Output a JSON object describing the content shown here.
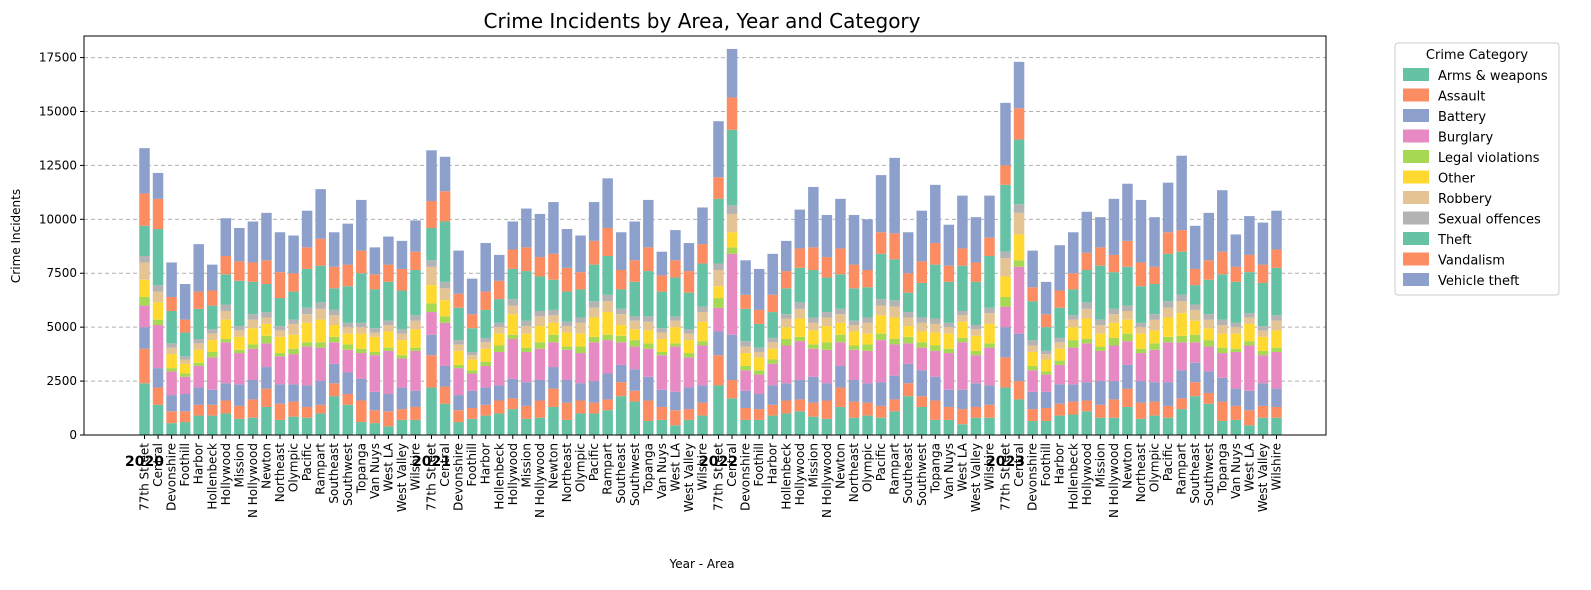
{
  "chart_data": {
    "type": "bar",
    "stacked": true,
    "title": "Crime Incidents by Area, Year and Category",
    "xlabel": "Year - Area",
    "ylabel": "Crime Incidents",
    "ylim": [
      0,
      18500
    ],
    "yticks": [
      0,
      2500,
      5000,
      7500,
      10000,
      12500,
      15000,
      17500
    ],
    "ytick_labels": [
      "0",
      "2500",
      "5000",
      "7500",
      "10000",
      "12500",
      "15000",
      "17500"
    ],
    "grid": "y dashed",
    "legend_title": "Crime Category",
    "legend_position": "outside right",
    "years": [
      "2020",
      "2021",
      "2022",
      "2023"
    ],
    "areas": [
      "77th Street",
      "Central",
      "Devonshire",
      "Foothill",
      "Harbor",
      "Hollenbeck",
      "Hollywood",
      "Mission",
      "N Hollywood",
      "Newton",
      "Northeast",
      "Olympic",
      "Pacific",
      "Rampart",
      "Southeast",
      "Southwest",
      "Topanga",
      "Van Nuys",
      "West LA",
      "West Valley",
      "Wilshire"
    ],
    "categories": [
      "Arms & weapons",
      "Assault",
      "Battery",
      "Burglary",
      "Legal violations",
      "Other",
      "Robbery",
      "Sexual offences",
      "Theft",
      "Vandalism",
      "Vehicle theft"
    ],
    "colors": [
      "#66c2a5",
      "#fc8d62",
      "#8da0cb",
      "#e78ac3",
      "#a6d854",
      "#ffd92f",
      "#e5c494",
      "#b3b3b3",
      "#66c2a5",
      "#fc8d62",
      "#8da0cb"
    ],
    "series": [
      {
        "name": "Arms & weapons",
        "values": [
          [
            2400,
            1400,
            550,
            600,
            900,
            900,
            1000,
            750,
            800,
            1300,
            700,
            850,
            800,
            1000,
            1800,
            1400,
            600,
            550,
            400,
            700,
            700
          ],
          [
            2200,
            1450,
            600,
            750,
            900,
            1000,
            1200,
            750,
            800,
            1300,
            700,
            1000,
            1000,
            1150,
            1800,
            1550,
            650,
            700,
            450,
            700,
            900
          ],
          [
            2300,
            1700,
            700,
            700,
            900,
            1000,
            1100,
            850,
            750,
            1300,
            800,
            900,
            800,
            1100,
            1800,
            1300,
            700,
            700,
            500,
            800,
            800
          ],
          [
            2200,
            1650,
            650,
            650,
            900,
            950,
            1100,
            800,
            800,
            1300,
            750,
            900,
            800,
            1200,
            1800,
            1450,
            650,
            700,
            450,
            800,
            800
          ]
        ]
      },
      {
        "name": "Assault",
        "values": [
          [
            1600,
            800,
            550,
            500,
            500,
            500,
            600,
            600,
            850,
            850,
            750,
            700,
            500,
            400,
            600,
            500,
            1000,
            600,
            700,
            500,
            600
          ],
          [
            1500,
            800,
            550,
            500,
            500,
            600,
            500,
            600,
            800,
            850,
            800,
            600,
            500,
            500,
            650,
            500,
            950,
            600,
            700,
            500,
            600
          ],
          [
            1400,
            850,
            550,
            500,
            500,
            600,
            550,
            650,
            850,
            900,
            750,
            600,
            550,
            550,
            600,
            500,
            900,
            600,
            700,
            500,
            600
          ],
          [
            1400,
            850,
            550,
            600,
            550,
            600,
            500,
            600,
            850,
            850,
            750,
            650,
            550,
            500,
            650,
            500,
            900,
            650,
            700,
            550,
            500
          ]
        ]
      },
      {
        "name": "Battery",
        "values": [
          [
            1000,
            900,
            750,
            800,
            800,
            700,
            800,
            1000,
            900,
            1000,
            900,
            800,
            1000,
            1100,
            900,
            1000,
            1000,
            850,
            800,
            1000,
            750
          ],
          [
            950,
            950,
            700,
            800,
            800,
            700,
            900,
            1100,
            950,
            1000,
            1050,
            800,
            1000,
            1200,
            800,
            1000,
            1100,
            800,
            850,
            1000,
            800
          ],
          [
            1100,
            2100,
            800,
            700,
            900,
            800,
            900,
            1200,
            800,
            1000,
            1000,
            900,
            1100,
            1100,
            900,
            1200,
            1100,
            800,
            900,
            1100,
            900
          ],
          [
            1400,
            2200,
            800,
            750,
            900,
            800,
            850,
            1100,
            850,
            1100,
            1000,
            900,
            1100,
            1300,
            900,
            1000,
            1100,
            800,
            900,
            1050,
            850
          ]
        ]
      },
      {
        "name": "Burglary",
        "values": [
          [
            1000,
            2000,
            1100,
            800,
            1000,
            1500,
            1900,
            1450,
            1450,
            1100,
            1300,
            1400,
            1800,
            1550,
            1000,
            1050,
            1200,
            1700,
            2000,
            1350,
            1850
          ],
          [
            1050,
            2000,
            1250,
            800,
            1000,
            1550,
            1850,
            1400,
            1450,
            1150,
            1400,
            1400,
            1800,
            1550,
            1050,
            1050,
            1300,
            1600,
            2100,
            1400,
            1850
          ],
          [
            1100,
            3750,
            950,
            900,
            1000,
            1750,
            1800,
            1300,
            1550,
            1100,
            1400,
            1500,
            1950,
            1450,
            950,
            1050,
            1200,
            1700,
            2200,
            1300,
            1750
          ],
          [
            950,
            3100,
            1000,
            800,
            900,
            1700,
            1800,
            1400,
            1650,
            1100,
            1300,
            1500,
            1850,
            1300,
            950,
            1150,
            1150,
            1700,
            2100,
            1300,
            1700
          ]
        ]
      },
      {
        "name": "Legal violations",
        "values": [
          [
            400,
            250,
            150,
            150,
            150,
            250,
            150,
            150,
            200,
            350,
            150,
            250,
            200,
            250,
            250,
            250,
            200,
            150,
            150,
            150,
            150
          ],
          [
            400,
            300,
            150,
            150,
            200,
            300,
            200,
            200,
            300,
            350,
            150,
            300,
            250,
            250,
            300,
            300,
            250,
            150,
            150,
            200,
            200
          ],
          [
            450,
            300,
            200,
            200,
            200,
            300,
            200,
            200,
            350,
            350,
            200,
            300,
            300,
            250,
            300,
            250,
            250,
            200,
            200,
            200,
            200
          ],
          [
            450,
            300,
            200,
            150,
            200,
            350,
            200,
            200,
            350,
            350,
            200,
            300,
            250,
            300,
            350,
            300,
            250,
            150,
            200,
            200,
            200
          ]
        ]
      },
      {
        "name": "Other",
        "values": [
          [
            800,
            800,
            650,
            450,
            600,
            550,
            900,
            600,
            750,
            550,
            750,
            650,
            900,
            1050,
            550,
            500,
            700,
            700,
            750,
            700,
            850
          ],
          [
            850,
            750,
            650,
            500,
            600,
            550,
            950,
            650,
            750,
            550,
            650,
            600,
            900,
            1050,
            500,
            500,
            600,
            600,
            750,
            600,
            900
          ],
          [
            550,
            700,
            600,
            600,
            500,
            550,
            850,
            650,
            750,
            550,
            650,
            500,
            850,
            1000,
            500,
            500,
            600,
            700,
            750,
            700,
            900
          ],
          [
            950,
            1200,
            650,
            550,
            550,
            600,
            950,
            600,
            700,
            650,
            700,
            600,
            900,
            1050,
            650,
            550,
            650,
            700,
            800,
            650,
            800
          ]
        ]
      },
      {
        "name": "Robbery",
        "values": [
          [
            800,
            500,
            300,
            200,
            300,
            300,
            400,
            300,
            400,
            300,
            300,
            500,
            400,
            500,
            450,
            300,
            300,
            200,
            300,
            300,
            400
          ],
          [
            850,
            550,
            300,
            200,
            300,
            300,
            400,
            350,
            450,
            350,
            300,
            500,
            450,
            500,
            500,
            400,
            400,
            300,
            300,
            300,
            450
          ],
          [
            750,
            850,
            300,
            250,
            300,
            400,
            450,
            350,
            400,
            400,
            300,
            500,
            450,
            500,
            400,
            400,
            400,
            300,
            300,
            300,
            500
          ],
          [
            850,
            1000,
            300,
            250,
            300,
            350,
            450,
            400,
            400,
            400,
            300,
            500,
            450,
            550,
            500,
            400,
            400,
            300,
            300,
            300,
            450
          ]
        ]
      },
      {
        "name": "Sexual offences",
        "values": [
          [
            300,
            300,
            200,
            150,
            200,
            200,
            300,
            200,
            250,
            250,
            200,
            200,
            300,
            300,
            250,
            200,
            200,
            200,
            200,
            200,
            250
          ],
          [
            300,
            300,
            200,
            150,
            200,
            200,
            300,
            250,
            250,
            250,
            200,
            250,
            300,
            300,
            250,
            200,
            250,
            200,
            200,
            200,
            250
          ],
          [
            300,
            400,
            250,
            200,
            200,
            200,
            300,
            250,
            250,
            250,
            200,
            250,
            300,
            300,
            250,
            250,
            250,
            200,
            200,
            200,
            250
          ],
          [
            300,
            400,
            250,
            150,
            200,
            200,
            300,
            250,
            250,
            250,
            200,
            250,
            300,
            300,
            250,
            250,
            250,
            200,
            200,
            200,
            250
          ]
        ]
      },
      {
        "name": "Theft",
        "values": [
          [
            1400,
            2600,
            1500,
            1100,
            1400,
            1100,
            1400,
            2100,
            1500,
            1300,
            1300,
            1300,
            1800,
            1700,
            1000,
            1700,
            2300,
            1800,
            1800,
            1800,
            2100
          ],
          [
            1500,
            2800,
            1500,
            1100,
            1300,
            1100,
            1400,
            2300,
            1600,
            1400,
            1400,
            1300,
            1700,
            1800,
            900,
            1600,
            2100,
            1700,
            1800,
            1700,
            2000
          ],
          [
            3000,
            3500,
            1500,
            1100,
            1200,
            1200,
            1600,
            2200,
            1600,
            1600,
            1500,
            1400,
            2100,
            1900,
            900,
            1600,
            2500,
            1900,
            2100,
            2000,
            2400
          ],
          [
            3100,
            3000,
            1800,
            1100,
            1400,
            1200,
            1500,
            2500,
            1700,
            1800,
            1700,
            1400,
            2200,
            2000,
            900,
            1600,
            2100,
            1900,
            1900,
            2000,
            2200
          ]
        ]
      },
      {
        "name": "Vandalism",
        "values": [
          [
            1500,
            1400,
            650,
            600,
            800,
            700,
            850,
            900,
            900,
            1100,
            1200,
            850,
            1000,
            1250,
            1000,
            1000,
            1050,
            700,
            800,
            1000,
            850
          ],
          [
            1250,
            1400,
            650,
            650,
            850,
            850,
            900,
            1100,
            900,
            1200,
            1100,
            800,
            1100,
            1300,
            900,
            1000,
            1100,
            750,
            800,
            1000,
            900
          ],
          [
            1000,
            1500,
            650,
            650,
            800,
            800,
            900,
            1050,
            950,
            1200,
            1100,
            800,
            1000,
            1200,
            900,
            1000,
            1000,
            750,
            800,
            900,
            850
          ],
          [
            900,
            1450,
            650,
            600,
            800,
            750,
            800,
            850,
            800,
            1200,
            1100,
            800,
            1000,
            1000,
            750,
            900,
            1050,
            700,
            800,
            850,
            850
          ]
        ]
      },
      {
        "name": "Vehicle theft",
        "values": [
          [
            2100,
            1200,
            1600,
            1650,
            2200,
            1200,
            1750,
            1550,
            1900,
            2200,
            1850,
            1750,
            1700,
            2300,
            1600,
            1900,
            2350,
            1250,
            1300,
            1300,
            1450
          ],
          [
            2350,
            1600,
            2000,
            1650,
            2250,
            1200,
            1300,
            1800,
            2000,
            2400,
            1800,
            1700,
            1800,
            2300,
            1750,
            1800,
            2200,
            1100,
            1400,
            1300,
            1700
          ],
          [
            2600,
            2250,
            1600,
            1900,
            1900,
            1400,
            1800,
            2800,
            1950,
            2300,
            2300,
            2350,
            2650,
            3500,
            1900,
            2350,
            2700,
            1900,
            2450,
            2100,
            1950
          ],
          [
            2900,
            2150,
            1700,
            1500,
            2100,
            1900,
            1900,
            1400,
            2600,
            2650,
            2900,
            2300,
            2300,
            3450,
            2000,
            2200,
            2850,
            1500,
            1800,
            1950,
            1800
          ]
        ]
      }
    ]
  }
}
